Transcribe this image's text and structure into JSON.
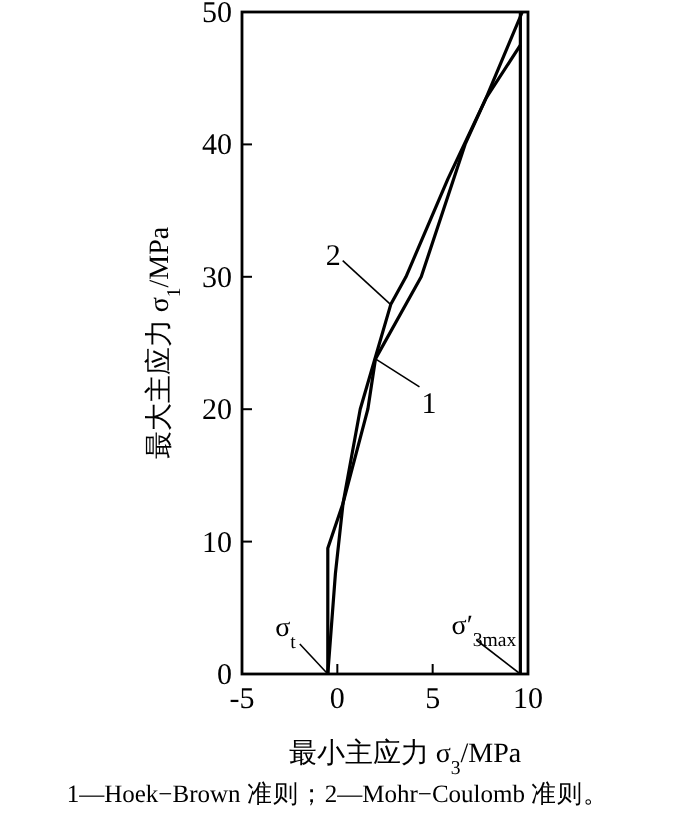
{
  "chart_data": {
    "type": "line",
    "xlabel": "最小主应力 σ$_{3}$/MPa",
    "ylabel": "最大主应力 σ$_{1}$/MPa",
    "xlim": [
      -5,
      10
    ],
    "ylim": [
      0,
      50
    ],
    "xticks": [
      -5,
      0,
      5,
      10
    ],
    "yticks": [
      0,
      10,
      20,
      30,
      40,
      50
    ],
    "series": [
      {
        "name": "1",
        "color": "#000000",
        "x": [
          -0.5,
          -0.1,
          0.3,
          1.6,
          2.0,
          4.4,
          6.7,
          7.8,
          9.7
        ],
        "values": [
          0,
          7.6,
          12.9,
          20,
          23.8,
          30,
          40,
          43.5,
          50
        ]
      },
      {
        "name": "2",
        "color": "#000000",
        "x": [
          -0.5,
          -0.5,
          0.3,
          1.2,
          2.8,
          3.6,
          5.8,
          7.8,
          9.6
        ],
        "values": [
          0,
          9.5,
          12.9,
          20,
          27.9,
          30,
          37.4,
          43.5,
          47.5
        ]
      }
    ],
    "ref_lines": [
      {
        "axis": "x",
        "value": 9.6,
        "label": "σ′$_{3max}$",
        "color": "#000000"
      }
    ],
    "annotations": [
      {
        "text": "σ$_{t}$",
        "x": -0.5,
        "y": 0
      },
      "1—Hoek−Brown 准则；2—Mohr−Coulomb 准则。"
    ],
    "grid": false,
    "marker": "none",
    "line_style": "solid"
  }
}
